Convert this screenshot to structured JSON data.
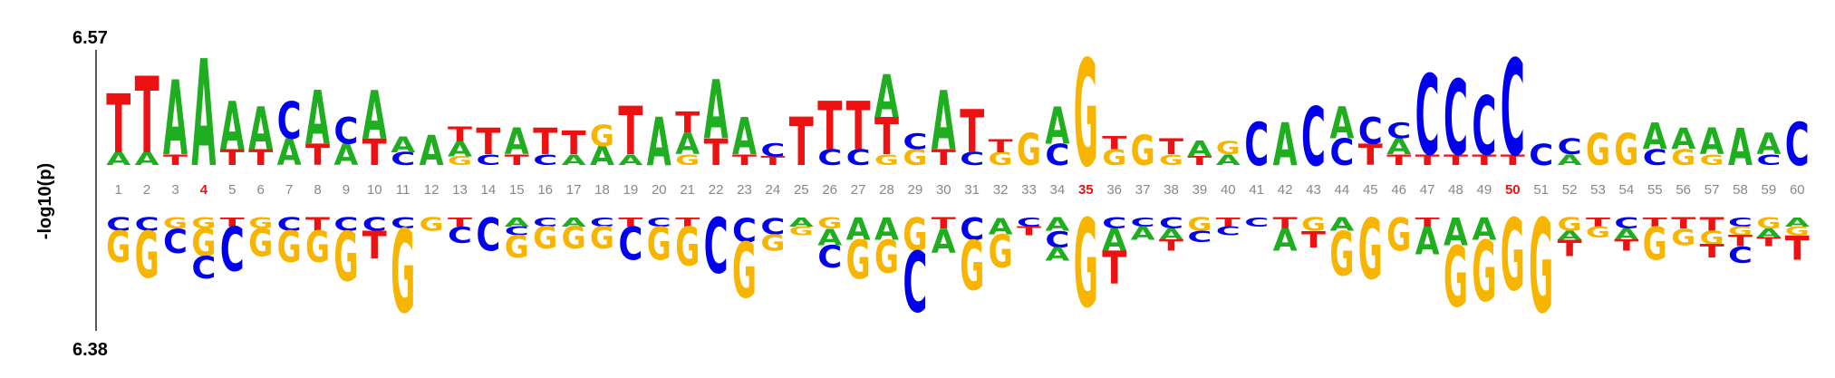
{
  "axis": {
    "ylabel": "-log10(p)",
    "top_value": "6.57",
    "bottom_value": "6.38"
  },
  "positions": [
    "1",
    "2",
    "3",
    "4",
    "5",
    "6",
    "7",
    "8",
    "9",
    "10",
    "11",
    "12",
    "13",
    "14",
    "15",
    "16",
    "17",
    "18",
    "19",
    "20",
    "21",
    "22",
    "23",
    "24",
    "25",
    "26",
    "27",
    "28",
    "29",
    "30",
    "31",
    "32",
    "33",
    "34",
    "35",
    "36",
    "37",
    "38",
    "39",
    "40",
    "41",
    "42",
    "43",
    "44",
    "45",
    "46",
    "47",
    "48",
    "49",
    "50",
    "51",
    "52",
    "53",
    "54",
    "55",
    "56",
    "57",
    "58",
    "59",
    "60"
  ],
  "highlighted_positions": [
    "4",
    "35",
    "50"
  ],
  "colors": {
    "A": "#1fae1f",
    "C": "#0000ee",
    "G": "#f7b500",
    "T": "#ee1111",
    "tick_label": "#888888",
    "highlight": "#ee1111"
  },
  "chart_data": {
    "type": "sequence-logo",
    "enriched": [
      [
        [
          "T",
          0.55
        ],
        [
          "A",
          0.12
        ]
      ],
      [
        [
          "T",
          0.72
        ],
        [
          "A",
          0.12
        ]
      ],
      [
        [
          "A",
          0.7
        ],
        [
          "T",
          0.1
        ]
      ],
      [
        [
          "A",
          1.0
        ]
      ],
      [
        [
          "A",
          0.45
        ],
        [
          "T",
          0.15
        ]
      ],
      [
        [
          "A",
          0.4
        ],
        [
          "T",
          0.15
        ]
      ],
      [
        [
          "C",
          0.35
        ],
        [
          "A",
          0.25
        ]
      ],
      [
        [
          "A",
          0.5
        ],
        [
          "T",
          0.2
        ]
      ],
      [
        [
          "C",
          0.25
        ],
        [
          "A",
          0.2
        ]
      ],
      [
        [
          "A",
          0.45
        ],
        [
          "T",
          0.25
        ]
      ],
      [
        [
          "A",
          0.15
        ],
        [
          "C",
          0.12
        ]
      ],
      [
        [
          "A",
          0.28
        ]
      ],
      [
        [
          "T",
          0.14
        ],
        [
          "A",
          0.14
        ],
        [
          "G",
          0.08
        ]
      ],
      [
        [
          "T",
          0.25
        ],
        [
          "C",
          0.1
        ]
      ],
      [
        [
          "A",
          0.25
        ],
        [
          "T",
          0.1
        ]
      ],
      [
        [
          "T",
          0.25
        ],
        [
          "C",
          0.1
        ]
      ],
      [
        [
          "T",
          0.22
        ],
        [
          "A",
          0.1
        ]
      ],
      [
        [
          "G",
          0.2
        ],
        [
          "A",
          0.18
        ]
      ],
      [
        [
          "T",
          0.45
        ],
        [
          "A",
          0.1
        ]
      ],
      [
        [
          "A",
          0.45
        ]
      ],
      [
        [
          "T",
          0.2
        ],
        [
          "A",
          0.2
        ],
        [
          "G",
          0.1
        ]
      ],
      [
        [
          "A",
          0.55
        ],
        [
          "T",
          0.25
        ]
      ],
      [
        [
          "A",
          0.35
        ],
        [
          "T",
          0.1
        ]
      ],
      [
        [
          "C",
          0.12
        ],
        [
          "T",
          0.08
        ]
      ],
      [
        [
          "T",
          0.45
        ]
      ],
      [
        [
          "T",
          0.45
        ],
        [
          "C",
          0.15
        ]
      ],
      [
        [
          "T",
          0.45
        ],
        [
          "C",
          0.15
        ]
      ],
      [
        [
          "A",
          0.4
        ],
        [
          "T",
          0.35
        ],
        [
          "G",
          0.1
        ]
      ],
      [
        [
          "C",
          0.15
        ],
        [
          "G",
          0.15
        ]
      ],
      [
        [
          "A",
          0.55
        ],
        [
          "T",
          0.15
        ]
      ],
      [
        [
          "T",
          0.4
        ],
        [
          "C",
          0.12
        ]
      ],
      [
        [
          "T",
          0.12
        ],
        [
          "G",
          0.12
        ]
      ],
      [
        [
          "G",
          0.3
        ]
      ],
      [
        [
          "A",
          0.35
        ],
        [
          "C",
          0.2
        ]
      ],
      [
        [
          "G",
          1.0
        ]
      ],
      [
        [
          "T",
          0.12
        ],
        [
          "G",
          0.15
        ]
      ],
      [
        [
          "G",
          0.28
        ]
      ],
      [
        [
          "T",
          0.15
        ],
        [
          "G",
          0.1
        ]
      ],
      [
        [
          "A",
          0.15
        ],
        [
          "T",
          0.08
        ]
      ],
      [
        [
          "G",
          0.12
        ],
        [
          "A",
          0.1
        ]
      ],
      [
        [
          "C",
          0.4
        ]
      ],
      [
        [
          "A",
          0.4
        ]
      ],
      [
        [
          "C",
          0.55
        ]
      ],
      [
        [
          "A",
          0.3
        ],
        [
          "C",
          0.25
        ]
      ],
      [
        [
          "C",
          0.25
        ],
        [
          "T",
          0.2
        ]
      ],
      [
        [
          "C",
          0.15
        ],
        [
          "A",
          0.15
        ],
        [
          "T",
          0.1
        ]
      ],
      [
        [
          "C",
          0.75
        ],
        [
          "T",
          0.1
        ]
      ],
      [
        [
          "C",
          0.7
        ],
        [
          "T",
          0.1
        ]
      ],
      [
        [
          "C",
          0.55
        ],
        [
          "T",
          0.1
        ]
      ],
      [
        [
          "C",
          0.9
        ],
        [
          "T",
          0.1
        ]
      ],
      [
        [
          "C",
          0.2
        ]
      ],
      [
        [
          "C",
          0.15
        ],
        [
          "A",
          0.1
        ]
      ],
      [
        [
          "G",
          0.3
        ]
      ],
      [
        [
          "G",
          0.3
        ]
      ],
      [
        [
          "A",
          0.25
        ],
        [
          "C",
          0.15
        ]
      ],
      [
        [
          "A",
          0.2
        ],
        [
          "G",
          0.15
        ]
      ],
      [
        [
          "A",
          0.25
        ],
        [
          "G",
          0.1
        ]
      ],
      [
        [
          "A",
          0.35
        ]
      ],
      [
        [
          "A",
          0.2
        ],
        [
          "C",
          0.1
        ]
      ],
      [
        [
          "C",
          0.4
        ]
      ]
    ],
    "depleted": [
      [
        [
          "C",
          0.12
        ],
        [
          "G",
          0.28
        ]
      ],
      [
        [
          "C",
          0.12
        ],
        [
          "G",
          0.42
        ]
      ],
      [
        [
          "G",
          0.1
        ],
        [
          "C",
          0.22
        ]
      ],
      [
        [
          "G",
          0.1
        ],
        [
          "G",
          0.25
        ],
        [
          "C",
          0.2
        ]
      ],
      [
        [
          "T",
          0.08
        ],
        [
          "C",
          0.4
        ]
      ],
      [
        [
          "G",
          0.1
        ],
        [
          "G",
          0.25
        ]
      ],
      [
        [
          "C",
          0.12
        ],
        [
          "G",
          0.28
        ]
      ],
      [
        [
          "T",
          0.12
        ],
        [
          "G",
          0.28
        ]
      ],
      [
        [
          "C",
          0.12
        ],
        [
          "G",
          0.45
        ]
      ],
      [
        [
          "C",
          0.12
        ],
        [
          "T",
          0.25
        ]
      ],
      [
        [
          "C",
          0.1
        ],
        [
          "G",
          0.75
        ]
      ],
      [
        [
          "G",
          0.12
        ]
      ],
      [
        [
          "T",
          0.08
        ],
        [
          "C",
          0.15
        ]
      ],
      [
        [
          "C",
          0.3
        ]
      ],
      [
        [
          "A",
          0.08
        ],
        [
          "C",
          0.08
        ],
        [
          "G",
          0.2
        ]
      ],
      [
        [
          "C",
          0.08
        ],
        [
          "G",
          0.2
        ]
      ],
      [
        [
          "A",
          0.08
        ],
        [
          "G",
          0.2
        ]
      ],
      [
        [
          "C",
          0.08
        ],
        [
          "G",
          0.2
        ]
      ],
      [
        [
          "T",
          0.08
        ],
        [
          "C",
          0.3
        ]
      ],
      [
        [
          "C",
          0.08
        ],
        [
          "G",
          0.3
        ]
      ],
      [
        [
          "T",
          0.08
        ],
        [
          "G",
          0.35
        ]
      ],
      [
        [
          "C",
          0.5
        ]
      ],
      [
        [
          "C",
          0.22
        ],
        [
          "G",
          0.5
        ]
      ],
      [
        [
          "C",
          0.15
        ],
        [
          "G",
          0.15
        ]
      ],
      [
        [
          "A",
          0.08
        ],
        [
          "G",
          0.08
        ]
      ],
      [
        [
          "G",
          0.1
        ],
        [
          "A",
          0.15
        ],
        [
          "C",
          0.2
        ]
      ],
      [
        [
          "A",
          0.2
        ],
        [
          "G",
          0.35
        ]
      ],
      [
        [
          "A",
          0.2
        ],
        [
          "G",
          0.3
        ]
      ],
      [
        [
          "G",
          0.3
        ],
        [
          "C",
          0.55
        ]
      ],
      [
        [
          "T",
          0.1
        ],
        [
          "A",
          0.22
        ]
      ],
      [
        [
          "C",
          0.2
        ],
        [
          "G",
          0.45
        ]
      ],
      [
        [
          "A",
          0.15
        ],
        [
          "G",
          0.3
        ]
      ],
      [
        [
          "C",
          0.08
        ],
        [
          "T",
          0.08
        ]
      ],
      [
        [
          "A",
          0.12
        ],
        [
          "C",
          0.15
        ],
        [
          "A",
          0.12
        ]
      ],
      [
        [
          "G",
          0.8
        ]
      ],
      [
        [
          "C",
          0.1
        ],
        [
          "A",
          0.2
        ],
        [
          "T",
          0.3
        ]
      ],
      [
        [
          "C",
          0.08
        ],
        [
          "A",
          0.12
        ]
      ],
      [
        [
          "C",
          0.1
        ],
        [
          "A",
          0.1
        ],
        [
          "T",
          0.1
        ]
      ],
      [
        [
          "G",
          0.12
        ],
        [
          "C",
          0.1
        ]
      ],
      [
        [
          "T",
          0.08
        ],
        [
          "C",
          0.08
        ]
      ],
      [
        [
          "C",
          0.08
        ]
      ],
      [
        [
          "T",
          0.1
        ],
        [
          "A",
          0.2
        ]
      ],
      [
        [
          "G",
          0.12
        ],
        [
          "T",
          0.15
        ]
      ],
      [
        [
          "A",
          0.12
        ],
        [
          "G",
          0.4
        ]
      ],
      [
        [
          "G",
          0.55
        ]
      ],
      [
        [
          "G",
          0.3
        ]
      ],
      [
        [
          "T",
          0.08
        ],
        [
          "A",
          0.25
        ]
      ],
      [
        [
          "A",
          0.25
        ],
        [
          "G",
          0.55
        ]
      ],
      [
        [
          "A",
          0.2
        ],
        [
          "G",
          0.55
        ]
      ],
      [
        [
          "G",
          0.65
        ]
      ],
      [
        [
          "G",
          0.85
        ]
      ],
      [
        [
          "G",
          0.12
        ],
        [
          "A",
          0.08
        ],
        [
          "T",
          0.15
        ]
      ],
      [
        [
          "T",
          0.08
        ],
        [
          "G",
          0.1
        ]
      ],
      [
        [
          "C",
          0.1
        ],
        [
          "A",
          0.1
        ],
        [
          "T",
          0.1
        ]
      ],
      [
        [
          "T",
          0.08
        ],
        [
          "G",
          0.3
        ]
      ],
      [
        [
          "T",
          0.1
        ],
        [
          "G",
          0.15
        ]
      ],
      [
        [
          "T",
          0.12
        ],
        [
          "G",
          0.12
        ],
        [
          "T",
          0.12
        ]
      ],
      [
        [
          "C",
          0.08
        ],
        [
          "G",
          0.08
        ],
        [
          "T",
          0.1
        ],
        [
          "C",
          0.15
        ]
      ],
      [
        [
          "G",
          0.1
        ],
        [
          "A",
          0.08
        ],
        [
          "T",
          0.08
        ]
      ],
      [
        [
          "A",
          0.08
        ],
        [
          "G",
          0.08
        ],
        [
          "T",
          0.22
        ]
      ]
    ]
  }
}
